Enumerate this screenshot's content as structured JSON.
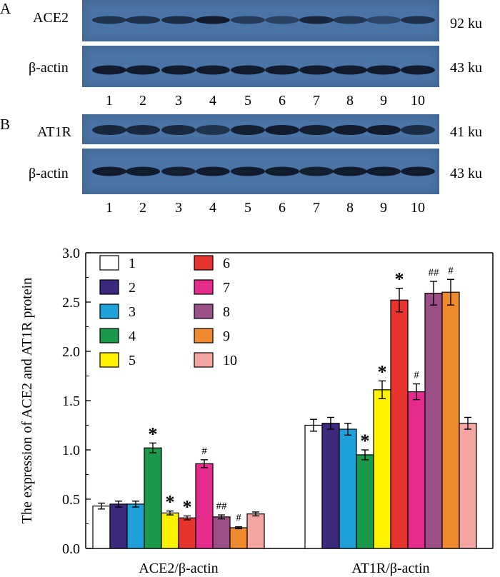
{
  "blots": {
    "panel_a": {
      "letter": "A",
      "rows": [
        {
          "label": "ACE2",
          "size": "92 ku",
          "band_strength": [
            0.55,
            0.6,
            0.65,
            0.9,
            0.45,
            0.35,
            0.75,
            0.5,
            0.3,
            0.6
          ]
        },
        {
          "label": "β-actin",
          "size": "43 ku",
          "band_strength": [
            0.9,
            0.9,
            0.9,
            0.9,
            0.9,
            0.9,
            0.9,
            0.9,
            0.9,
            0.9
          ]
        }
      ],
      "lanes": [
        "1",
        "2",
        "3",
        "4",
        "5",
        "6",
        "7",
        "8",
        "9",
        "10"
      ]
    },
    "panel_b": {
      "letter": "B",
      "rows": [
        {
          "label": "AT1R",
          "size": "41 ku",
          "band_strength": [
            0.75,
            0.7,
            0.7,
            0.55,
            0.85,
            0.9,
            0.85,
            0.9,
            0.9,
            0.65
          ]
        },
        {
          "label": "β-actin",
          "size": "43 ku",
          "band_strength": [
            0.9,
            0.9,
            0.85,
            0.9,
            0.9,
            0.9,
            0.85,
            0.9,
            0.9,
            0.9
          ]
        }
      ],
      "lanes": [
        "1",
        "2",
        "3",
        "4",
        "5",
        "6",
        "7",
        "8",
        "9",
        "10"
      ]
    }
  },
  "chart_data": {
    "type": "bar",
    "title": "",
    "xlabel": "",
    "ylabel": "The expression of ACE2 and AT1R protein",
    "ylim": [
      0,
      3.0
    ],
    "yticks": [
      "0.0",
      "0.5",
      "1.0",
      "1.5",
      "2.0",
      "2.5",
      "3.0"
    ],
    "yticks_values": [
      0,
      0.5,
      1.0,
      1.5,
      2.0,
      2.5,
      3.0
    ],
    "categories": [
      "ACE2/β-actin",
      "AT1R/β-actin"
    ],
    "legend_placement": "top-left",
    "grid": false,
    "series": [
      {
        "name": "1",
        "color": "#ffffff",
        "values": [
          0.43,
          1.25
        ],
        "errors": [
          0.03,
          0.06
        ],
        "marks": [
          "",
          ""
        ]
      },
      {
        "name": "2",
        "color": "#3d2a7f",
        "values": [
          0.45,
          1.27
        ],
        "errors": [
          0.03,
          0.06
        ],
        "marks": [
          "",
          ""
        ]
      },
      {
        "name": "3",
        "color": "#1ea0d8",
        "values": [
          0.45,
          1.21
        ],
        "errors": [
          0.03,
          0.06
        ],
        "marks": [
          "",
          ""
        ]
      },
      {
        "name": "4",
        "color": "#1c9a4b",
        "values": [
          1.02,
          0.95
        ],
        "errors": [
          0.05,
          0.05
        ],
        "marks": [
          "*",
          "*"
        ]
      },
      {
        "name": "5",
        "color": "#fff200",
        "values": [
          0.36,
          1.61
        ],
        "errors": [
          0.02,
          0.09
        ],
        "marks": [
          "*",
          "*"
        ]
      },
      {
        "name": "6",
        "color": "#e8342e",
        "values": [
          0.31,
          2.52
        ],
        "errors": [
          0.02,
          0.12
        ],
        "marks": [
          "*",
          "*"
        ]
      },
      {
        "name": "7",
        "color": "#e52b8c",
        "values": [
          0.86,
          1.59
        ],
        "errors": [
          0.04,
          0.08
        ],
        "marks": [
          "#",
          "#"
        ]
      },
      {
        "name": "8",
        "color": "#9b4f86",
        "values": [
          0.32,
          2.59
        ],
        "errors": [
          0.02,
          0.12
        ],
        "marks": [
          "##",
          "##"
        ]
      },
      {
        "name": "9",
        "color": "#f08a2e",
        "values": [
          0.21,
          2.6
        ],
        "errors": [
          0.01,
          0.13
        ],
        "marks": [
          "#",
          "#"
        ]
      },
      {
        "name": "10",
        "color": "#f6a6a2",
        "values": [
          0.35,
          1.27
        ],
        "errors": [
          0.02,
          0.06
        ],
        "marks": [
          "",
          ""
        ]
      }
    ]
  }
}
